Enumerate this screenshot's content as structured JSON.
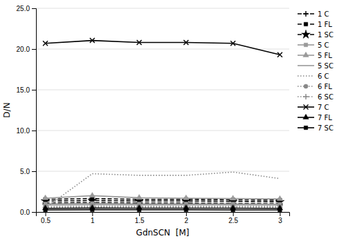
{
  "chart_data": {
    "type": "line",
    "x": [
      0.5,
      1.0,
      1.5,
      2.0,
      2.5,
      3.0
    ],
    "xlabel": "GdnSCN  [M]",
    "ylabel": "D/N",
    "xlim": [
      0.4,
      3.1
    ],
    "ylim": [
      0,
      25
    ],
    "xticks": [
      0.5,
      1,
      1.5,
      2,
      2.5,
      3
    ],
    "yticks": [
      {
        "value": 0,
        "label": "0.0"
      },
      {
        "value": 5,
        "label": "5.0"
      },
      {
        "value": 10,
        "label": "10.0"
      },
      {
        "value": 15,
        "label": "15.0"
      },
      {
        "value": 20,
        "label": "20.0"
      },
      {
        "value": 25,
        "label": "25.0"
      }
    ],
    "grid": true,
    "legend": "right",
    "series": [
      {
        "name": "1 C",
        "color": "#000000",
        "line_style": "dashed",
        "marker": "plus",
        "values": [
          1.1,
          1.15,
          1.1,
          1.1,
          1.05,
          1.0
        ]
      },
      {
        "name": "1 FL",
        "color": "#000000",
        "line_style": "dashed",
        "marker": "square",
        "values": [
          1.55,
          1.65,
          1.55,
          1.55,
          1.5,
          1.45
        ]
      },
      {
        "name": "1 SC",
        "color": "#000000",
        "line_style": "dashed",
        "marker": "star",
        "values": [
          1.35,
          1.4,
          1.35,
          1.35,
          1.3,
          1.25
        ]
      },
      {
        "name": "5 C",
        "color": "#999999",
        "line_style": "solid",
        "marker": "square",
        "values": [
          1.0,
          1.05,
          1.0,
          1.0,
          1.0,
          0.95
        ]
      },
      {
        "name": "5 FL",
        "color": "#999999",
        "line_style": "solid",
        "marker": "triangle",
        "values": [
          1.7,
          2.0,
          1.75,
          1.7,
          1.65,
          1.6
        ]
      },
      {
        "name": "5 SC",
        "color": "#999999",
        "line_style": "solid",
        "marker": "none",
        "values": [
          0.85,
          0.9,
          0.88,
          0.88,
          0.87,
          0.85
        ]
      },
      {
        "name": "6 C",
        "color": "#888888",
        "line_style": "dotted",
        "marker": "none",
        "values": [
          0.5,
          4.7,
          4.5,
          4.5,
          4.9,
          4.1
        ]
      },
      {
        "name": "6 FL",
        "color": "#888888",
        "line_style": "dotted",
        "marker": "circle",
        "values": [
          0.65,
          0.72,
          0.7,
          0.7,
          0.7,
          0.68
        ]
      },
      {
        "name": "6 SC",
        "color": "#888888",
        "line_style": "dotted",
        "marker": "plus",
        "values": [
          0.55,
          0.6,
          0.6,
          0.6,
          0.6,
          0.58
        ]
      },
      {
        "name": "7 C",
        "color": "#000000",
        "line_style": "solid",
        "marker": "x",
        "values": [
          20.7,
          21.05,
          20.8,
          20.8,
          20.7,
          19.3
        ]
      },
      {
        "name": "7 FL",
        "color": "#000000",
        "line_style": "solid",
        "marker": "triangle",
        "values": [
          0.45,
          0.48,
          0.47,
          0.47,
          0.46,
          0.45
        ]
      },
      {
        "name": "7 SC",
        "color": "#000000",
        "line_style": "solid",
        "marker": "square",
        "values": [
          0.25,
          0.28,
          0.27,
          0.27,
          0.26,
          0.25
        ]
      }
    ]
  }
}
